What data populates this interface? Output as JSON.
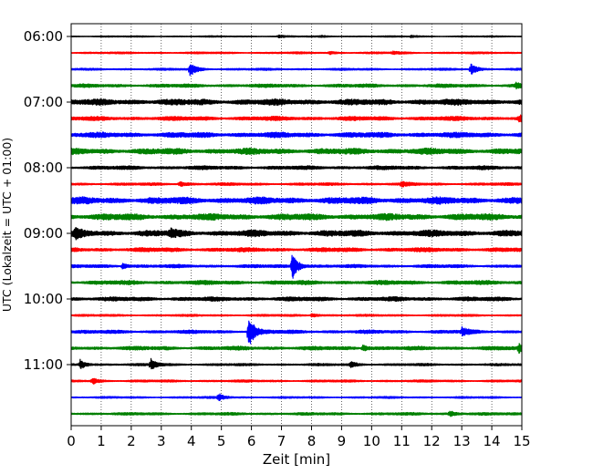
{
  "chart_data": {
    "type": "line",
    "xlabel": "Zeit  [min]",
    "ylabel": "UTC (Lokalzeit = UTC + 01:00)",
    "xlim": [
      0,
      15
    ],
    "x_ticks": [
      0,
      1,
      2,
      3,
      4,
      5,
      6,
      7,
      8,
      9,
      10,
      11,
      12,
      13,
      14,
      15
    ],
    "x_grid": "dotted vertical lines at every minute",
    "y_ticks": [
      "06:00",
      "07:00",
      "08:00",
      "09:00",
      "10:00",
      "11:00"
    ],
    "trace_colors": [
      "#000000",
      "#ff0000",
      "#0000ff",
      "#008000"
    ],
    "series": [
      {
        "start": "06:00",
        "color": "#000000",
        "noise": 0.7,
        "events": [
          {
            "x": 6.9,
            "amp": 1.2
          },
          {
            "x": 8.3,
            "amp": 1.0
          },
          {
            "x": 11.3,
            "amp": 1.1
          }
        ]
      },
      {
        "start": "06:15",
        "color": "#ff0000",
        "noise": 1.0,
        "events": [
          {
            "x": 8.6,
            "amp": 1.3
          },
          {
            "x": 10.7,
            "amp": 1.3
          }
        ]
      },
      {
        "start": "06:30",
        "color": "#0000ff",
        "noise": 1.1,
        "events": [
          {
            "x": 3.95,
            "amp": 8.0
          },
          {
            "x": 13.3,
            "amp": 6.0
          }
        ]
      },
      {
        "start": "06:45",
        "color": "#008000",
        "noise": 1.8,
        "events": [
          {
            "x": 14.8,
            "amp": 2.5
          }
        ]
      },
      {
        "start": "07:00",
        "color": "#000000",
        "noise": 3.2,
        "events": []
      },
      {
        "start": "07:15",
        "color": "#ff0000",
        "noise": 2.2,
        "events": [
          {
            "x": 14.9,
            "amp": 3.0
          }
        ]
      },
      {
        "start": "07:30",
        "color": "#0000ff",
        "noise": 2.8,
        "events": []
      },
      {
        "start": "07:45",
        "color": "#008000",
        "noise": 3.2,
        "events": []
      },
      {
        "start": "08:00",
        "color": "#000000",
        "noise": 2.0,
        "events": []
      },
      {
        "start": "08:15",
        "color": "#ff0000",
        "noise": 1.4,
        "events": [
          {
            "x": 3.6,
            "amp": 2.5
          },
          {
            "x": 11.0,
            "amp": 2.5
          }
        ]
      },
      {
        "start": "08:30",
        "color": "#0000ff",
        "noise": 3.6,
        "events": []
      },
      {
        "start": "08:45",
        "color": "#008000",
        "noise": 3.4,
        "events": []
      },
      {
        "start": "09:00",
        "color": "#000000",
        "noise": 3.3,
        "events": [
          {
            "x": 0.15,
            "amp": 4.5
          },
          {
            "x": 3.3,
            "amp": 3.5
          }
        ]
      },
      {
        "start": "09:15",
        "color": "#ff0000",
        "noise": 2.2,
        "events": []
      },
      {
        "start": "09:30",
        "color": "#0000ff",
        "noise": 1.7,
        "events": [
          {
            "x": 1.7,
            "amp": 3.0
          },
          {
            "x": 7.35,
            "amp": 15.0
          }
        ]
      },
      {
        "start": "09:45",
        "color": "#008000",
        "noise": 2.2,
        "events": []
      },
      {
        "start": "10:00",
        "color": "#000000",
        "noise": 2.2,
        "events": []
      },
      {
        "start": "10:15",
        "color": "#ff0000",
        "noise": 1.1,
        "events": [
          {
            "x": 8.0,
            "amp": 2.2
          }
        ]
      },
      {
        "start": "10:30",
        "color": "#0000ff",
        "noise": 1.8,
        "events": [
          {
            "x": 5.9,
            "amp": 18.0
          },
          {
            "x": 13.0,
            "amp": 4.0
          }
        ]
      },
      {
        "start": "10:45",
        "color": "#008000",
        "noise": 2.0,
        "events": [
          {
            "x": 9.7,
            "amp": 3.5
          },
          {
            "x": 14.9,
            "amp": 4.0
          }
        ]
      },
      {
        "start": "11:00",
        "color": "#000000",
        "noise": 1.2,
        "events": [
          {
            "x": 0.3,
            "amp": 5.0
          },
          {
            "x": 2.65,
            "amp": 6.0
          },
          {
            "x": 9.3,
            "amp": 3.0
          }
        ]
      },
      {
        "start": "11:15",
        "color": "#ff0000",
        "noise": 1.2,
        "events": [
          {
            "x": 0.7,
            "amp": 3.0
          }
        ]
      },
      {
        "start": "11:30",
        "color": "#0000ff",
        "noise": 1.0,
        "events": [
          {
            "x": 4.9,
            "amp": 4.0
          }
        ]
      },
      {
        "start": "11:45",
        "color": "#008000",
        "noise": 1.4,
        "events": [
          {
            "x": 12.6,
            "amp": 3.0
          }
        ]
      }
    ]
  }
}
